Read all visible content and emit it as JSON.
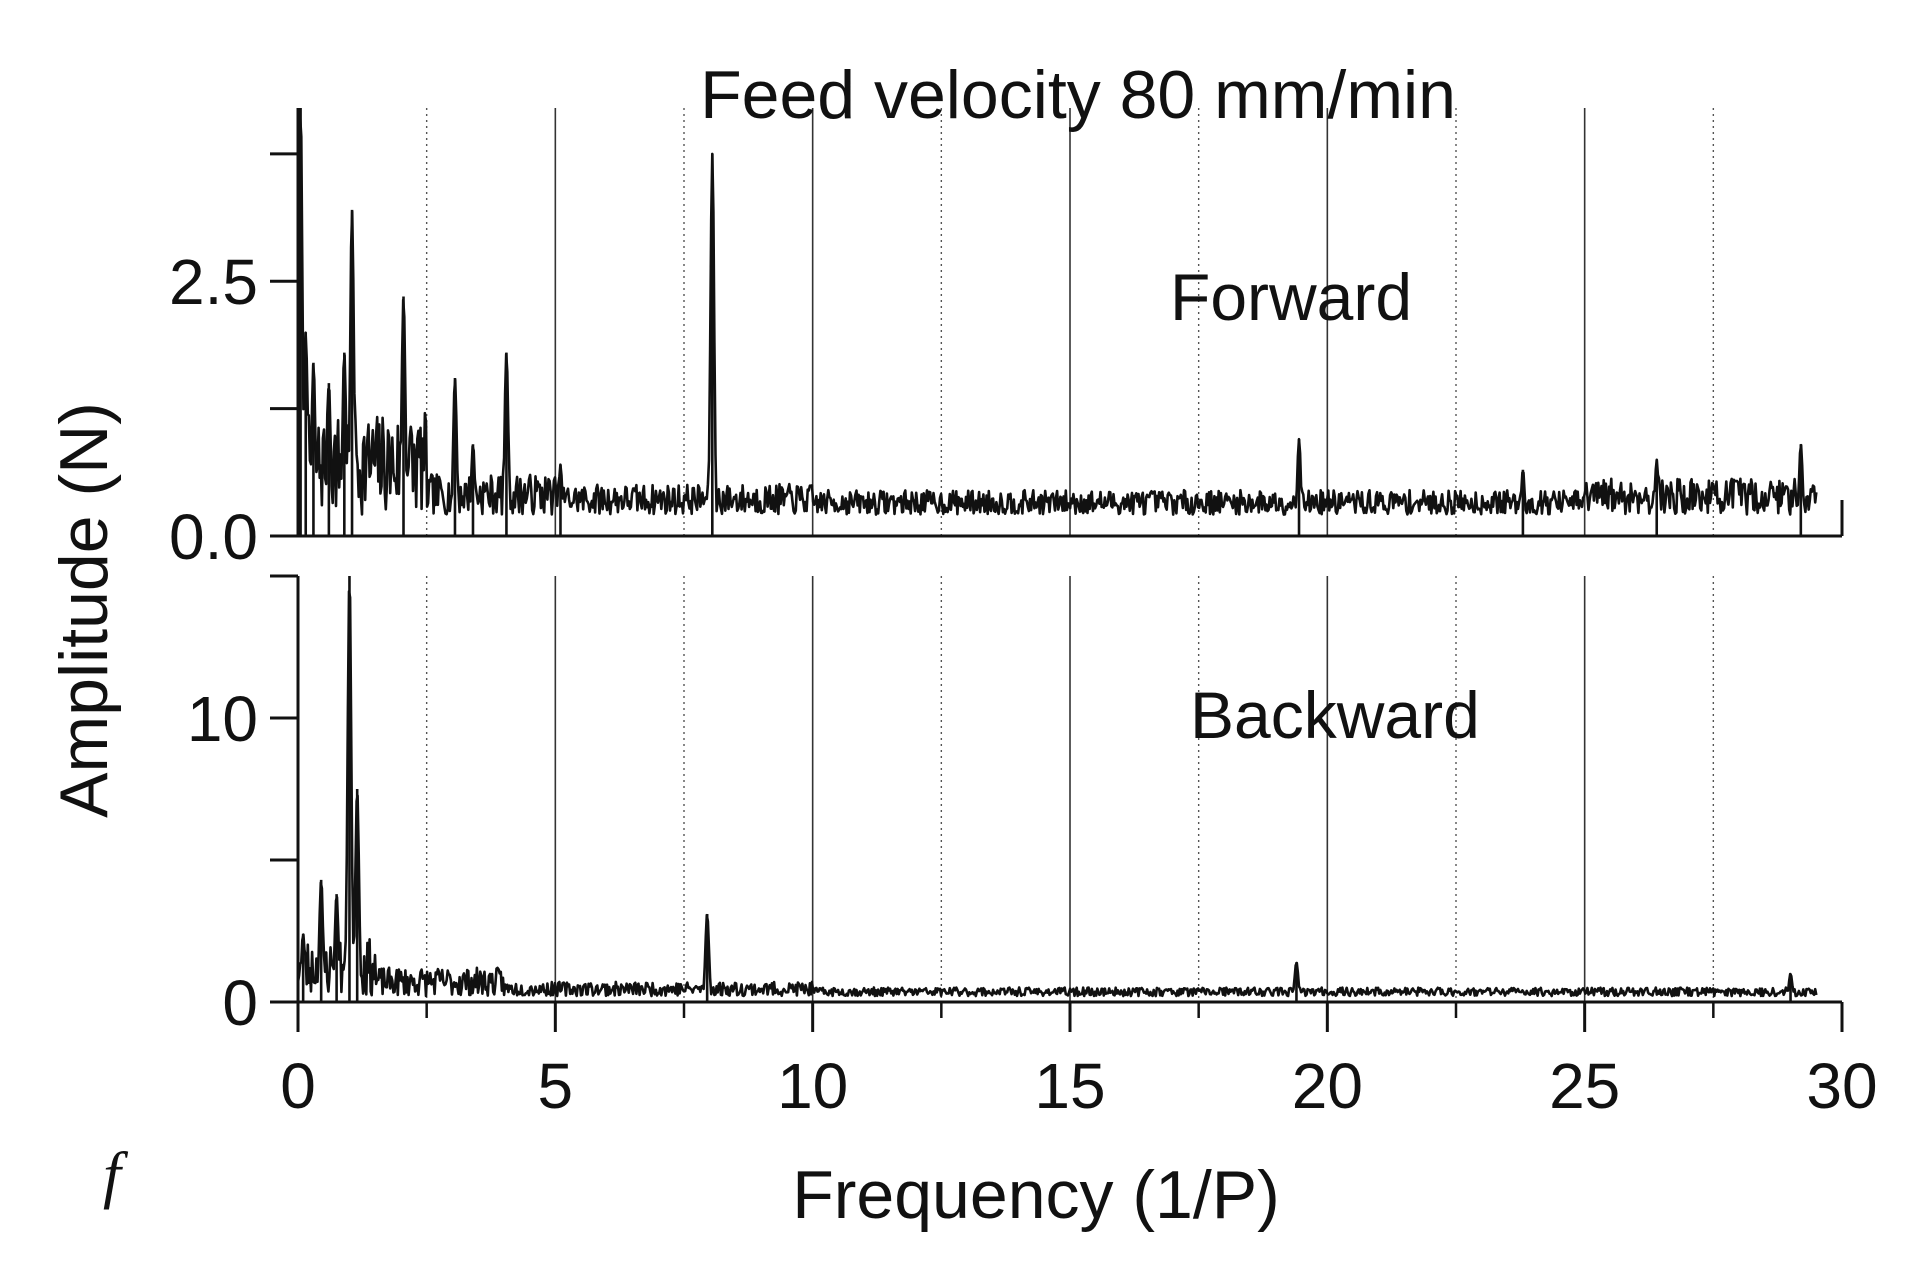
{
  "chart_data": [
    {
      "type": "line",
      "panel": "top",
      "title": "Feed velocity 80 mm/min",
      "label": "Forward",
      "xlabel": "Frequency (1/P)",
      "ylabel": "Amplitude (N)",
      "xlim": [
        0,
        30
      ],
      "ylim": [
        0,
        4.2
      ],
      "yticks": [
        {
          "value": 0.0,
          "label": "0.0"
        },
        {
          "value": 2.5,
          "label": "2.5"
        }
      ],
      "ymajor_tick_values": [
        0,
        1.25,
        2.5,
        3.75
      ],
      "grid": {
        "x_solid": [
          5,
          10,
          15,
          20,
          25
        ],
        "x_dotted": [
          2.5,
          7.5,
          12.5,
          17.5,
          22.5,
          27.5
        ]
      },
      "x_end": 29.5,
      "baseline": 0.3,
      "noise_segments": [
        [
          0,
          2.5,
          0.5
        ],
        [
          2.5,
          5,
          0.2
        ],
        [
          5,
          10,
          0.15
        ],
        [
          10,
          25,
          0.12
        ],
        [
          25,
          29.5,
          0.18
        ]
      ],
      "peaks": [
        {
          "x": 0.05,
          "y": 4.2
        },
        {
          "x": 0.15,
          "y": 2.0
        },
        {
          "x": 0.3,
          "y": 1.7
        },
        {
          "x": 0.6,
          "y": 1.5
        },
        {
          "x": 0.9,
          "y": 1.8
        },
        {
          "x": 1.05,
          "y": 3.2
        },
        {
          "x": 2.05,
          "y": 2.35
        },
        {
          "x": 3.05,
          "y": 1.55
        },
        {
          "x": 3.4,
          "y": 0.9
        },
        {
          "x": 4.05,
          "y": 1.8
        },
        {
          "x": 5.1,
          "y": 0.7
        },
        {
          "x": 8.05,
          "y": 3.75
        },
        {
          "x": 19.45,
          "y": 0.95
        },
        {
          "x": 23.8,
          "y": 0.65
        },
        {
          "x": 26.4,
          "y": 0.75
        },
        {
          "x": 29.2,
          "y": 0.9
        }
      ]
    },
    {
      "type": "line",
      "panel": "bottom",
      "label": "Backward",
      "xlabel": "Frequency (1/P)",
      "ylabel": "Amplitude (N)",
      "xlim": [
        0,
        30
      ],
      "ylim": [
        0,
        15
      ],
      "yticks": [
        {
          "value": 0,
          "label": "0"
        },
        {
          "value": 10,
          "label": "10"
        }
      ],
      "ymajor_tick_values": [
        0,
        5,
        10,
        15
      ],
      "xticks": [
        {
          "value": 0,
          "label": "0"
        },
        {
          "value": 5,
          "label": "5"
        },
        {
          "value": 10,
          "label": "10"
        },
        {
          "value": 15,
          "label": "15"
        },
        {
          "value": 20,
          "label": "20"
        },
        {
          "value": 25,
          "label": "25"
        },
        {
          "value": 30,
          "label": "30"
        }
      ],
      "grid": {
        "x_solid": [
          5,
          10,
          15,
          20,
          25
        ],
        "x_dotted": [
          2.5,
          7.5,
          12.5,
          17.5,
          22.5,
          27.5
        ]
      },
      "x_end": 29.5,
      "baseline": 0.3,
      "noise_segments": [
        [
          0,
          1.5,
          1.0
        ],
        [
          1.5,
          4,
          0.5
        ],
        [
          4,
          10,
          0.25
        ],
        [
          10,
          29.5,
          0.15
        ]
      ],
      "peaks": [
        {
          "x": 0.1,
          "y": 2.4
        },
        {
          "x": 0.45,
          "y": 4.3
        },
        {
          "x": 0.75,
          "y": 3.8
        },
        {
          "x": 1.0,
          "y": 15.0
        },
        {
          "x": 1.15,
          "y": 7.5
        },
        {
          "x": 7.95,
          "y": 3.1
        },
        {
          "x": 19.4,
          "y": 1.4
        },
        {
          "x": 29.0,
          "y": 1.0
        }
      ]
    }
  ],
  "footer": {
    "f_label": "f"
  }
}
